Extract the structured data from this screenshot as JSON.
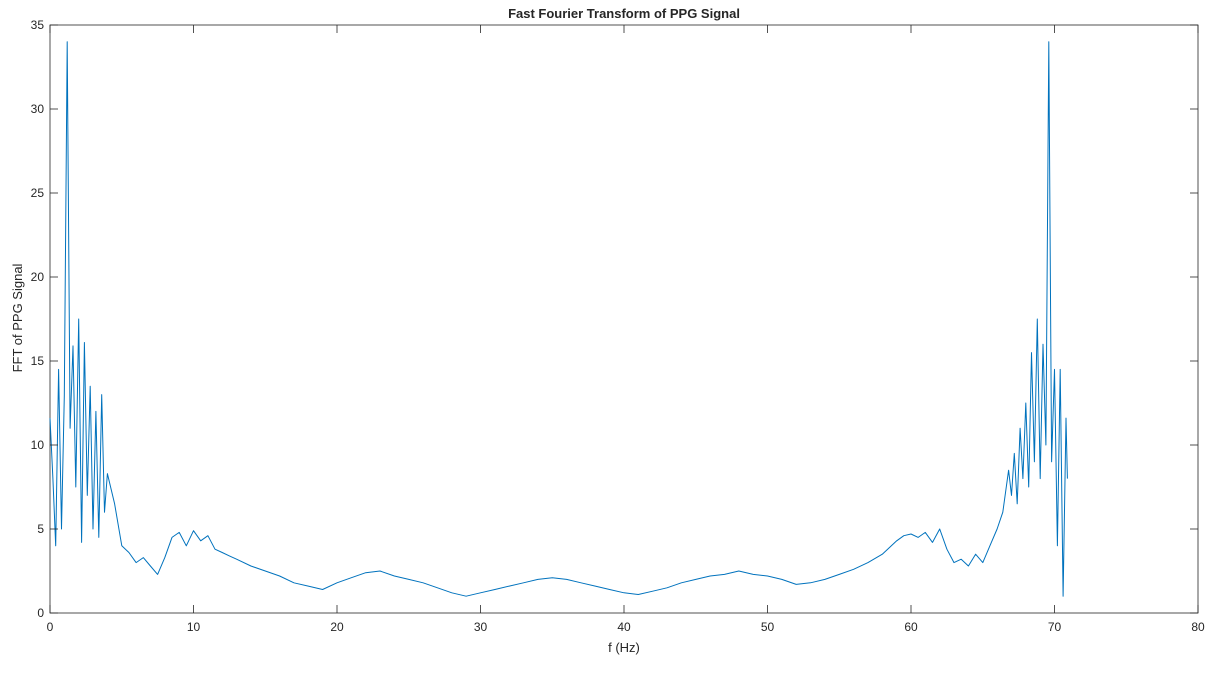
{
  "chart_data": {
    "type": "line",
    "title": "Fast Fourier Transform of PPG Signal",
    "xlabel": "f (Hz)",
    "ylabel": "FFT of PPG Signal",
    "xlim": [
      0,
      80
    ],
    "ylim": [
      0,
      35
    ],
    "xticks": [
      "0",
      "10",
      "20",
      "30",
      "40",
      "50",
      "60",
      "70",
      "80"
    ],
    "yticks": [
      "0",
      "5",
      "10",
      "15",
      "20",
      "25",
      "30",
      "35"
    ],
    "grid": false,
    "line_color": "#0072BD",
    "series": [
      {
        "x": [
          0,
          0.2,
          0.4,
          0.6,
          0.8,
          1.0,
          1.2,
          1.4,
          1.6,
          1.8,
          2.0,
          2.2,
          2.4,
          2.6,
          2.8,
          3.0,
          3.2,
          3.4,
          3.6,
          3.8,
          4.0,
          4.5,
          5,
          5.5,
          6,
          6.5,
          7,
          7.5,
          8,
          8.5,
          9,
          9.5,
          10,
          10.5,
          11,
          11.5,
          12,
          12.5,
          13,
          14,
          15,
          16,
          17,
          18,
          19,
          20,
          21,
          22,
          23,
          24,
          25,
          26,
          27,
          28,
          29,
          30,
          31,
          32,
          33,
          34,
          35,
          36,
          37,
          38,
          39,
          40,
          41,
          42,
          43,
          44,
          45,
          46,
          47,
          48,
          49,
          50,
          51,
          52,
          53,
          54,
          55,
          56,
          57,
          58,
          58.5,
          59,
          59.5,
          60,
          60.5,
          61,
          61.5,
          62,
          62.5,
          63,
          63.5,
          64,
          64.5,
          65,
          65.5,
          66,
          66.4,
          66.8,
          67,
          67.2,
          67.4,
          67.6,
          67.8,
          68,
          68.2,
          68.4,
          68.6,
          68.8,
          69,
          69.2,
          69.4,
          69.6,
          69.8,
          70,
          70.2,
          70.4,
          70.6,
          70.8,
          70.9
        ],
        "y": [
          11.6,
          8.0,
          4.0,
          14.5,
          5.0,
          12.9,
          34.0,
          11.0,
          15.9,
          7.5,
          17.5,
          4.2,
          16.1,
          7.0,
          13.5,
          5.0,
          12.0,
          4.5,
          13.0,
          6.0,
          8.3,
          6.5,
          4.0,
          3.6,
          3.0,
          3.3,
          2.8,
          2.3,
          3.3,
          4.5,
          4.8,
          4.0,
          4.9,
          4.3,
          4.6,
          3.8,
          3.6,
          3.4,
          3.2,
          2.8,
          2.5,
          2.2,
          1.8,
          1.6,
          1.4,
          1.8,
          2.1,
          2.4,
          2.5,
          2.2,
          2.0,
          1.8,
          1.5,
          1.2,
          1.0,
          1.2,
          1.4,
          1.6,
          1.8,
          2.0,
          2.1,
          2.0,
          1.8,
          1.6,
          1.4,
          1.2,
          1.1,
          1.3,
          1.5,
          1.8,
          2.0,
          2.2,
          2.3,
          2.5,
          2.3,
          2.2,
          2.0,
          1.7,
          1.8,
          2.0,
          2.3,
          2.6,
          3.0,
          3.5,
          3.9,
          4.3,
          4.6,
          4.7,
          4.5,
          4.8,
          4.2,
          5.0,
          3.8,
          3.0,
          3.2,
          2.8,
          3.5,
          3.0,
          4.0,
          5.0,
          6.0,
          8.5,
          7.0,
          9.5,
          6.5,
          11.0,
          8.0,
          12.5,
          7.5,
          15.5,
          9.0,
          17.5,
          8.0,
          16.0,
          10.0,
          34.0,
          9.0,
          14.5,
          4.0,
          14.5,
          1.0,
          11.6,
          8.0
        ]
      }
    ]
  }
}
